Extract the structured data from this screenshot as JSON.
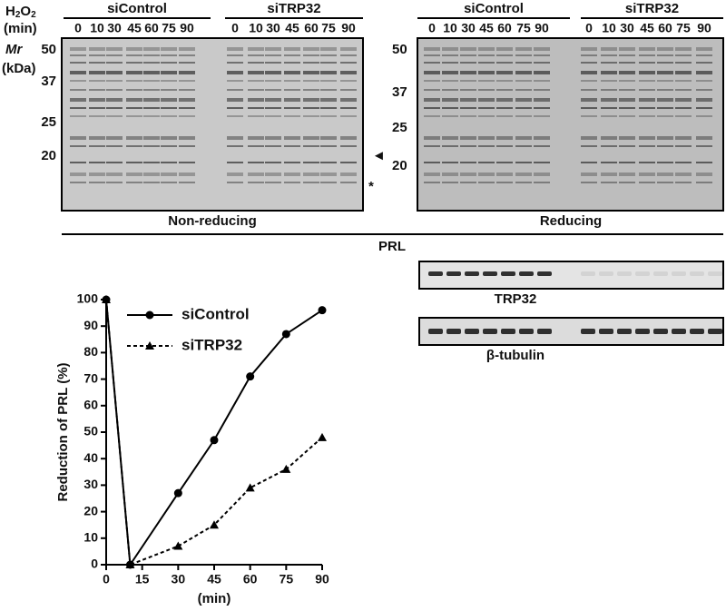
{
  "figure": {
    "h2o2": [
      "H",
      "2",
      "O",
      "2"
    ],
    "min_label": "(min)",
    "mr_label": "Mr",
    "kda_label": "(kDa)",
    "non_reducing": {
      "groups": [
        "siControl",
        "siTRP32"
      ],
      "lanes": [
        "0",
        "10",
        "30",
        "45",
        "60",
        "75",
        "90"
      ],
      "markers": [
        "50",
        "37",
        "25",
        "20"
      ],
      "caption": "Non-reducing",
      "arrow": "◄",
      "asterisk": "*"
    },
    "reducing": {
      "groups": [
        "siControl",
        "siTRP32"
      ],
      "lanes": [
        "0",
        "10",
        "30",
        "45",
        "60",
        "75",
        "90"
      ],
      "markers": [
        "50",
        "37",
        "25",
        "20"
      ],
      "caption": "Reducing"
    },
    "prl_label": "PRL",
    "trp32_label": "TRP32",
    "tubulin_label": "β-tubulin"
  },
  "chart_data": {
    "type": "line",
    "x": [
      0,
      10,
      30,
      45,
      60,
      75,
      90
    ],
    "series": [
      {
        "name": "siControl",
        "color": "#000000",
        "marker": "circle",
        "linestyle": "solid",
        "values": [
          100,
          0,
          27,
          47,
          71,
          87,
          96
        ]
      },
      {
        "name": "siTRP32",
        "color": "#000000",
        "marker": "triangle",
        "linestyle": "dashed",
        "values": [
          100,
          0,
          7,
          15,
          29,
          36,
          48
        ]
      }
    ],
    "xlabel": "(min)",
    "ylabel": "Reduction of PRL (%)",
    "xlim": [
      0,
      90
    ],
    "xticks": [
      0,
      15,
      30,
      45,
      60,
      75,
      90
    ],
    "ylim": [
      0,
      100
    ],
    "yticks": [
      0,
      10,
      20,
      30,
      40,
      50,
      60,
      70,
      80,
      90,
      100
    ],
    "legend": "upper left"
  }
}
